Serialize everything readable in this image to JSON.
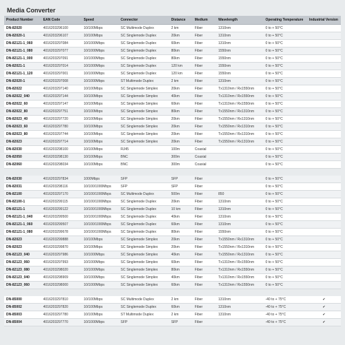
{
  "title": "Media Converter",
  "columns": [
    "Product Number",
    "EAN Code",
    "Speed",
    "Connector",
    "Distance",
    "Medium",
    "Wavelength",
    "Operating Temperature",
    "Industrial Version"
  ],
  "ean_prefix": "40162032",
  "groups": [
    [
      {
        "pn": "DN-82020",
        "ean": "96100",
        "spd": "10/100Mbps",
        "conn": "SC Multimode Duplex",
        "dist": "2 km",
        "med": "Fiber",
        "wl": "1310nm",
        "temp": "0 to + 50°C",
        "ind": ""
      },
      {
        "pn": "DN-82020-1",
        "ean": "96107",
        "spd": "10/100Mbps",
        "conn": "SC Singlemode Duplex",
        "dist": "20km",
        "med": "Fiber",
        "wl": "1310nm",
        "temp": "0 to + 50°C",
        "ind": ""
      },
      {
        "pn": "DN-82121-1_060",
        "ean": "97084",
        "spd": "10/1000Mbps",
        "conn": "SC Singlemode Duplex",
        "dist": "60km",
        "med": "Fiber",
        "wl": "1310nm",
        "temp": "0 to + 50°C",
        "ind": ""
      },
      {
        "pn": "DN-82121-1_080",
        "ean": "97077",
        "spd": "10/1000Mbps",
        "conn": "SC Singlemode Duplex",
        "dist": "80km",
        "med": "Fiber",
        "wl": "1550nm",
        "temp": "0 to + 50°C",
        "ind": ""
      },
      {
        "pn": "DN-82121-1_000",
        "ean": "97091",
        "spd": "10/1000Mbps",
        "conn": "SC Singlemode Duplex",
        "dist": "80km",
        "med": "Fiber",
        "wl": "1550nm",
        "temp": "0 to + 50°C",
        "ind": ""
      },
      {
        "pn": "DN-82021-1",
        "ean": "97014",
        "spd": "10/1000Mbps",
        "conn": "SC Singlemode Duplex",
        "dist": "120 km",
        "med": "Fiber",
        "wl": "1550nm",
        "temp": "0 to + 50°C",
        "ind": ""
      },
      {
        "pn": "DN-82121-1_120",
        "ean": "97001",
        "spd": "10/1000Mbps",
        "conn": "SC Singlemode Duplex",
        "dist": "120 km",
        "med": "Fiber",
        "wl": "1550nm",
        "temp": "0 to + 50°C",
        "ind": ""
      },
      {
        "pn": "DN-82020-1",
        "ean": "97008",
        "spd": "10/1000Mbps",
        "conn": "ST Multimode Duplex",
        "dist": "2 km",
        "med": "Fiber",
        "wl": "1310nm",
        "temp": "0 to + 50°C",
        "ind": ""
      },
      {
        "pn": "DN-82022",
        "ean": "97140",
        "spd": "10/100Mbps",
        "conn": "SC Singlemode Simplex",
        "dist": "20km",
        "med": "Fiber",
        "wl": "Tx1310nm / Rx1550nm",
        "temp": "0 to + 50°C",
        "ind": ""
      },
      {
        "pn": "DN-82022_040",
        "ean": "97144",
        "spd": "10/100Mbps",
        "conn": "SC Singlemode Simplex",
        "dist": "40km",
        "med": "Fiber",
        "wl": "Tx1310nm / Rx1550nm",
        "temp": "0 to + 50°C",
        "ind": ""
      },
      {
        "pn": "DN-82022_60",
        "ean": "97147",
        "spd": "10/100Mbps",
        "conn": "SC Singlemode Simplex",
        "dist": "60km",
        "med": "Fiber",
        "wl": "Tx1310nm / Rx1550nm",
        "temp": "0 to + 50°C",
        "ind": ""
      },
      {
        "pn": "DN-82022_80",
        "ean": "97751",
        "spd": "10/100Mbps",
        "conn": "SC Singlemode Simplex",
        "dist": "80km",
        "med": "Fiber",
        "wl": "Tx1550nm / Rx1310nm",
        "temp": "0 to + 50°C",
        "ind": ""
      },
      {
        "pn": "DN-82023_40",
        "ean": "97720",
        "spd": "10/100Mbps",
        "conn": "SC Singlemode Simplex",
        "dist": "20km",
        "med": "Fiber",
        "wl": "Tx1550nm / Rx1310nm",
        "temp": "0 to + 50°C",
        "ind": ""
      },
      {
        "pn": "DN-82023_60",
        "ean": "97780",
        "spd": "10/100Mbps",
        "conn": "SC Singlemode Simplex",
        "dist": "20km",
        "med": "Fiber",
        "wl": "Tx1550nm / Rx1310nm",
        "temp": "0 to + 50°C",
        "ind": ""
      },
      {
        "pn": "DN-82023_80",
        "ean": "97744",
        "spd": "10/100Mbps",
        "conn": "SC Singlemode Simplex",
        "dist": "20km",
        "med": "Fiber",
        "wl": "Tx1550nm / Rx1310nm",
        "temp": "0 to + 50°C",
        "ind": ""
      },
      {
        "pn": "DN-82023",
        "ean": "97714",
        "spd": "10/100Mbps",
        "conn": "SC Singlemode Simplex",
        "dist": "20km",
        "med": "Fiber",
        "wl": "Tx1550nm / Rx1310nm",
        "temp": "0 to + 50°C",
        "ind": ""
      },
      {
        "pn": "DN-82030",
        "ean": "98100",
        "spd": "10/100Mbps",
        "conn": "RJ45",
        "dist": "100m",
        "med": "Coaxial",
        "wl": "",
        "temp": "0 to + 50°C",
        "ind": ""
      },
      {
        "pn": "DN-82050",
        "ean": "98130",
        "spd": "10/100Mbps",
        "conn": "BNC",
        "dist": "300m",
        "med": "Coaxial",
        "wl": "",
        "temp": "0 to + 50°C",
        "ind": ""
      },
      {
        "pn": "DN-82060",
        "ean": "98034",
        "spd": "10/100Mbps",
        "conn": "BNC",
        "dist": "300m",
        "med": "Coaxial",
        "wl": "",
        "temp": "0 to + 50°C",
        "ind": ""
      }
    ],
    [
      {
        "pn": "DN-82030",
        "ean": "97834",
        "spd": "1000Mbps",
        "conn": "SFP",
        "dist": "SFP",
        "med": "Fiber",
        "wl": "",
        "temp": "0 to + 50°C",
        "ind": ""
      },
      {
        "pn": "DN-82031",
        "ean": "98116",
        "spd": "10/100/1000Mbps",
        "conn": "SFP",
        "dist": "SFP",
        "med": "Fiber",
        "wl": "",
        "temp": "0 to + 50°C",
        "ind": ""
      },
      {
        "pn": "DN-82100",
        "ean": "97170",
        "spd": "10/100/1000Mbps",
        "conn": "SC Multimode Duplex",
        "dist": "500m",
        "med": "Fiber",
        "wl": "850",
        "temp": "0 to + 50°C",
        "ind": ""
      },
      {
        "pn": "DN-82100-1",
        "ean": "99115",
        "spd": "10/100/1000Mbps",
        "conn": "SC Singlemode Duplex",
        "dist": "20km",
        "med": "Fiber",
        "wl": "1310nm",
        "temp": "0 to + 50°C",
        "ind": ""
      },
      {
        "pn": "DN-82121-1",
        "ean": "99122",
        "spd": "10/100/1000Mbps",
        "conn": "SC Singlemode Duplex",
        "dist": "10 km",
        "med": "Fiber",
        "wl": "1310nm",
        "temp": "0 to + 50°C",
        "ind": ""
      },
      {
        "pn": "DN-82121-1_040",
        "ean": "99500",
        "spd": "10/100/1000Mbps",
        "conn": "SC Singlemode Duplex",
        "dist": "40km",
        "med": "Fiber",
        "wl": "1310nm",
        "temp": "0 to + 50°C",
        "ind": ""
      },
      {
        "pn": "DN-82121-1_060",
        "ean": "99507",
        "spd": "10/100/1000Mbps",
        "conn": "SC Singlemode Duplex",
        "dist": "60km",
        "med": "Fiber",
        "wl": "1310nm",
        "temp": "0 to + 50°C",
        "ind": ""
      },
      {
        "pn": "DN-82121-1_080",
        "ean": "99678",
        "spd": "10/100/1000Mbps",
        "conn": "SC Singlemode Duplex",
        "dist": "80km",
        "med": "Fiber",
        "wl": "1550nm",
        "temp": "0 to + 50°C",
        "ind": ""
      },
      {
        "pn": "DN-82023",
        "ean": "99888",
        "spd": "10/100Mbps",
        "conn": "SC Singlemode Simplex",
        "dist": "20km",
        "med": "Fiber",
        "wl": "Tx1550nm / Rx1310nm",
        "temp": "0 to + 50°C",
        "ind": ""
      },
      {
        "pn": "DN-82023",
        "ean": "99870",
        "spd": "10/100Mbps",
        "conn": "SC Singlemode Simplex",
        "dist": "20km",
        "med": "Fiber",
        "wl": "Tx1550nm / Rx1310nm",
        "temp": "0 to + 50°C",
        "ind": ""
      },
      {
        "pn": "DN-82123_040",
        "ean": "97986",
        "spd": "10/1000Mbps",
        "conn": "SC Singlemode Simplex",
        "dist": "40km",
        "med": "Fiber",
        "wl": "Tx1550nm / Rx1310nm",
        "temp": "0 to + 50°C",
        "ind": ""
      },
      {
        "pn": "DN-82123_060",
        "ean": "97993",
        "spd": "10/1000Mbps",
        "conn": "SC Singlemode Simplex",
        "dist": "60km",
        "med": "Fiber",
        "wl": "Tx1310nm / Rx1550nm",
        "temp": "0 to + 50°C",
        "ind": ""
      },
      {
        "pn": "DN-82123_080",
        "ean": "98020",
        "spd": "10/1000Mbps",
        "conn": "SC Singlemode Simplex",
        "dist": "80km",
        "med": "Fiber",
        "wl": "Tx1310nm / Rx1550nm",
        "temp": "0 to + 50°C",
        "ind": ""
      },
      {
        "pn": "DN-82123_040",
        "ean": "98909",
        "spd": "10/1000Mbps",
        "conn": "SC Singlemode Simplex",
        "dist": "40km",
        "med": "Fiber",
        "wl": "Tx1310nm / Rx1550nm",
        "temp": "0 to + 50°C",
        "ind": ""
      },
      {
        "pn": "DN-82123_060",
        "ean": "98000",
        "spd": "10/1000Mbps",
        "conn": "SC Singlemode Simplex",
        "dist": "60km",
        "med": "Fiber",
        "wl": "Tx1310nm / Rx1550nm",
        "temp": "0 to + 50°C",
        "ind": ""
      }
    ],
    [
      {
        "pn": "DN-85000",
        "ean": "97810",
        "spd": "10/100Mbps",
        "conn": "SC Multimode Duplex",
        "dist": "2 km",
        "med": "Fiber",
        "wl": "1310nm",
        "temp": "-40 to + 75°C",
        "ind": "✔"
      },
      {
        "pn": "DN-85002",
        "ean": "97820",
        "spd": "10/100Mbps",
        "conn": "SC Singlemode Duplex",
        "dist": "60km",
        "med": "Fiber",
        "wl": "1310nm",
        "temp": "-40 to + 75°C",
        "ind": "✔"
      },
      {
        "pn": "DN-85003",
        "ean": "97780",
        "spd": "10/100Mbps",
        "conn": "ST Multimode Duplex",
        "dist": "2 km",
        "med": "Fiber",
        "wl": "1310nm",
        "temp": "-40 to + 75°C",
        "ind": "✔"
      },
      {
        "pn": "DN-85004",
        "ean": "97770",
        "spd": "10/1000Mbps",
        "conn": "SFP",
        "dist": "SFP",
        "med": "Fiber",
        "wl": "",
        "temp": "-40 to + 75°C",
        "ind": "✔"
      }
    ]
  ]
}
